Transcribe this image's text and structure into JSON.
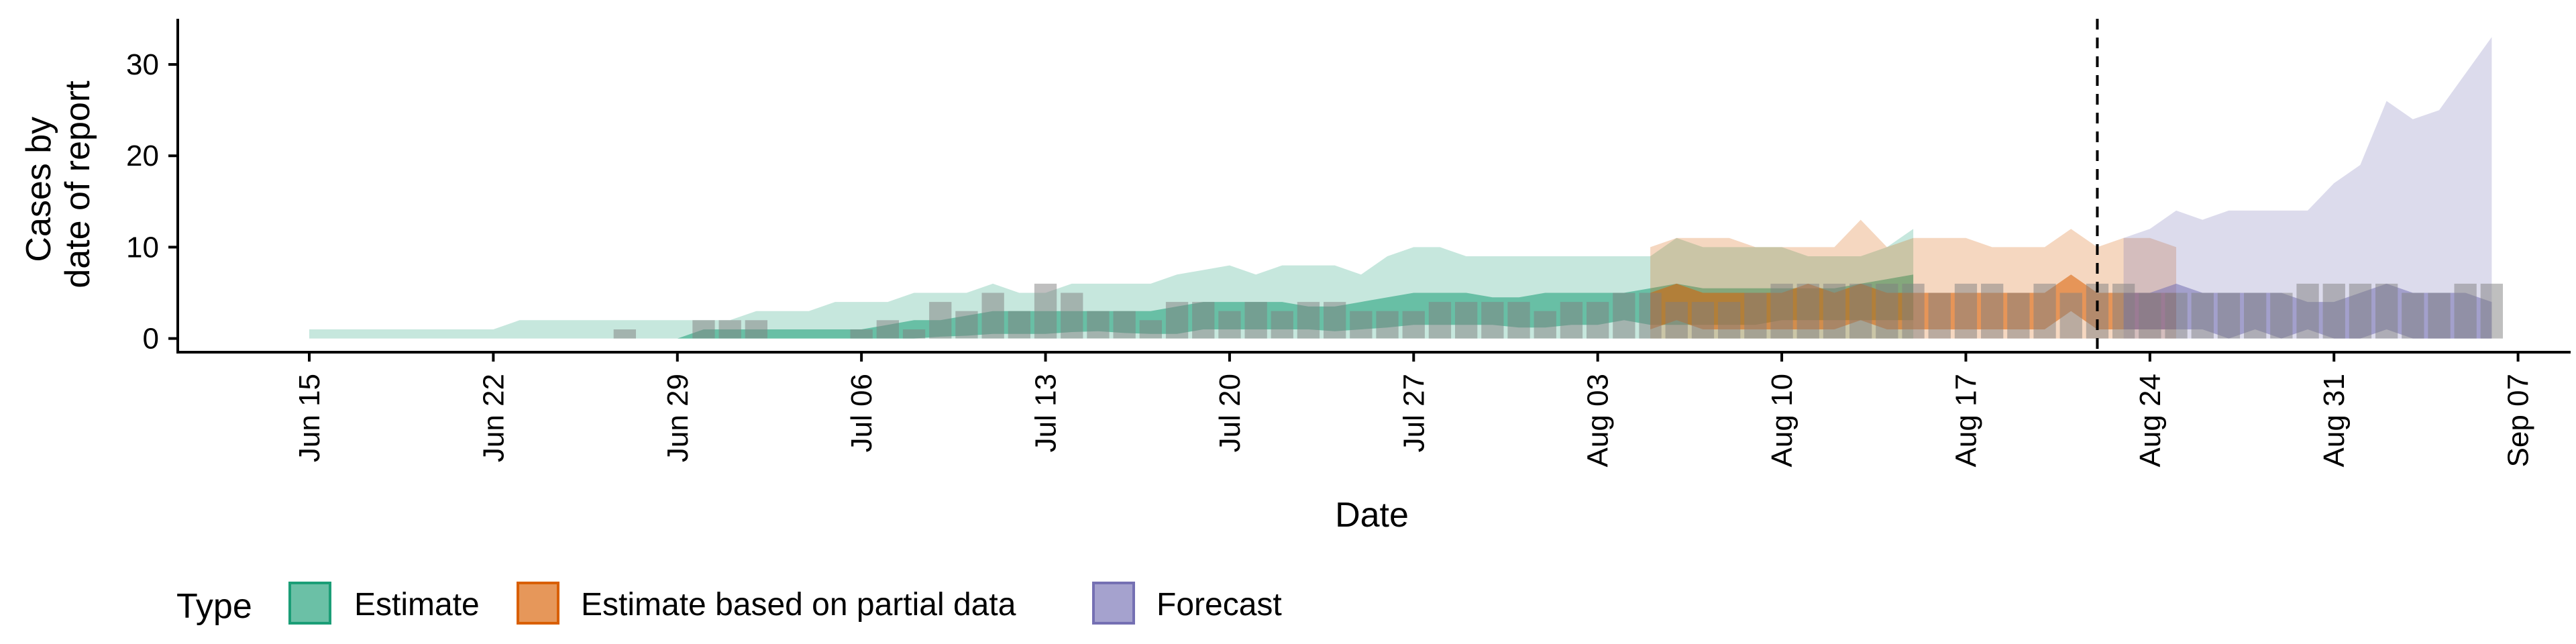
{
  "chart_data": {
    "type": "area",
    "xlabel": "Date",
    "ylabel_lines": [
      "Cases by",
      "date of report"
    ],
    "y_ticks": [
      0,
      10,
      20,
      30
    ],
    "ylim": [
      -1.5,
      35
    ],
    "x_ticks": [
      {
        "date": "2020-06-15",
        "label": "Jun 15"
      },
      {
        "date": "2020-06-22",
        "label": "Jun 22"
      },
      {
        "date": "2020-06-29",
        "label": "Jun 29"
      },
      {
        "date": "2020-07-06",
        "label": "Jul 06"
      },
      {
        "date": "2020-07-13",
        "label": "Jul 13"
      },
      {
        "date": "2020-07-20",
        "label": "Jul 20"
      },
      {
        "date": "2020-07-27",
        "label": "Jul 27"
      },
      {
        "date": "2020-08-03",
        "label": "Aug 03"
      },
      {
        "date": "2020-08-10",
        "label": "Aug 10"
      },
      {
        "date": "2020-08-17",
        "label": "Aug 17"
      },
      {
        "date": "2020-08-24",
        "label": "Aug 24"
      },
      {
        "date": "2020-08-31",
        "label": "Aug 31"
      },
      {
        "date": "2020-09-07",
        "label": "Sep 07"
      }
    ],
    "xlim": [
      "2020-06-10",
      "2020-09-09"
    ],
    "grid": false,
    "legend_position": "bottom",
    "legend_title": "Type",
    "vline_date": "2020-08-22",
    "reported_cases": {
      "start": "2020-06-15",
      "values": [
        0,
        0,
        0,
        0,
        0,
        0,
        0,
        0,
        0,
        0,
        0,
        0,
        1,
        0,
        0,
        2,
        2,
        2,
        0,
        0,
        0,
        1,
        2,
        1,
        4,
        3,
        5,
        3,
        6,
        5,
        3,
        3,
        2,
        4,
        4,
        3,
        4,
        3,
        4,
        4,
        3,
        3,
        3,
        4,
        4,
        4,
        4,
        3,
        4,
        4,
        5,
        5,
        4,
        4,
        4,
        5,
        6,
        6,
        6,
        6,
        6,
        6,
        5,
        6,
        6,
        5,
        6,
        5,
        6,
        6,
        5,
        5,
        5,
        5,
        5,
        5,
        6,
        6,
        6,
        6,
        5,
        5,
        6,
        6
      ]
    },
    "series": [
      {
        "name": "Estimate",
        "color": "#1B9E77",
        "start": "2020-06-15",
        "upper90": [
          1,
          1,
          1,
          1,
          1,
          1,
          1,
          1,
          2,
          2,
          2,
          2,
          2,
          2,
          2,
          2,
          2,
          3,
          3,
          3,
          4,
          4,
          4,
          5,
          5,
          5,
          6,
          5,
          5,
          6,
          6,
          6,
          6,
          7,
          7.5,
          8,
          7,
          8,
          8,
          8,
          7,
          9,
          10,
          10,
          9,
          9,
          9,
          9,
          9,
          9,
          9,
          9,
          11,
          10,
          10,
          10,
          10,
          9,
          9,
          9,
          10,
          12
        ],
        "lower90": [
          0,
          0,
          0,
          0,
          0,
          0,
          0,
          0,
          0,
          0,
          0,
          0,
          0,
          0,
          0,
          0,
          0,
          0,
          0,
          0,
          0,
          0,
          0,
          0,
          0,
          0,
          0,
          0,
          0,
          0,
          0,
          0,
          0,
          0,
          0,
          0,
          0,
          0,
          0,
          0,
          0,
          0,
          0,
          0,
          0,
          0,
          0,
          0,
          0,
          0,
          0,
          0,
          0,
          0,
          0,
          0,
          0,
          0,
          0,
          0,
          0,
          0
        ],
        "upper50": [
          0,
          0,
          0,
          0,
          0,
          0,
          0,
          0,
          0,
          0,
          0,
          0,
          0,
          0,
          0,
          1,
          1,
          1,
          1,
          1,
          1,
          1,
          1.5,
          2,
          2,
          2.5,
          3,
          3,
          3,
          3,
          3,
          3,
          3,
          3.5,
          4,
          4,
          4,
          4,
          3.5,
          3.5,
          4,
          4.5,
          5,
          5,
          5,
          4.5,
          4.5,
          5,
          5,
          5,
          5,
          5.5,
          6,
          5.5,
          5.5,
          5.5,
          5.5,
          5.5,
          5.5,
          6,
          6.5,
          7
        ],
        "lower50": [
          0,
          0,
          0,
          0,
          0,
          0,
          0,
          0,
          0,
          0,
          0,
          0,
          0,
          0,
          0,
          0,
          0,
          0,
          0,
          0,
          0,
          0,
          0,
          0,
          0.2,
          0.3,
          0.5,
          0.5,
          0.5,
          0.7,
          0.8,
          0.6,
          0.5,
          0.5,
          1,
          1,
          1,
          1,
          1,
          0.8,
          1,
          1.2,
          1.5,
          1.5,
          1.5,
          1.5,
          1.2,
          1.2,
          1.5,
          1.5,
          2,
          1.5,
          1.5,
          1.5,
          1.5,
          1.5,
          2,
          2,
          2,
          2,
          2,
          2
        ]
      },
      {
        "name": "Estimate based on partial data",
        "color": "#D95F02",
        "start": "2020-08-05",
        "upper90": [
          10,
          11,
          11,
          11,
          10,
          10,
          10,
          10,
          13,
          10,
          11,
          11,
          11,
          10,
          10,
          10,
          12,
          10,
          11,
          11,
          10
        ],
        "lower90": [
          0,
          0,
          0,
          0,
          0,
          0,
          0,
          0,
          0,
          0,
          0,
          0,
          0,
          0,
          0,
          0,
          0,
          0,
          0,
          0,
          0
        ],
        "upper50": [
          5,
          6,
          5,
          5,
          5,
          5,
          6,
          5,
          6,
          5,
          5,
          5,
          5,
          5,
          5,
          5,
          7,
          5,
          5,
          5,
          5
        ],
        "lower50": [
          1,
          2,
          1,
          1,
          1,
          1,
          1,
          1,
          2,
          1,
          1,
          1,
          1,
          1,
          1,
          1,
          3,
          1,
          1,
          1,
          1
        ]
      },
      {
        "name": "Forecast",
        "color": "#7570B3",
        "start": "2020-08-23",
        "upper90": [
          11,
          12,
          14,
          13,
          14,
          14,
          14,
          14,
          17,
          19,
          26,
          24,
          25,
          29,
          33
        ],
        "lower90": [
          0,
          0,
          0,
          0,
          0,
          0,
          0,
          0,
          0,
          0,
          0,
          0,
          0,
          0,
          0
        ],
        "upper50": [
          5,
          5,
          6,
          5,
          5,
          5,
          5,
          4,
          4,
          5,
          6,
          5,
          5,
          5,
          4
        ],
        "lower50": [
          1,
          1,
          1,
          1,
          0,
          1,
          0,
          1,
          0,
          0,
          1,
          0,
          0,
          0,
          0
        ]
      }
    ]
  }
}
